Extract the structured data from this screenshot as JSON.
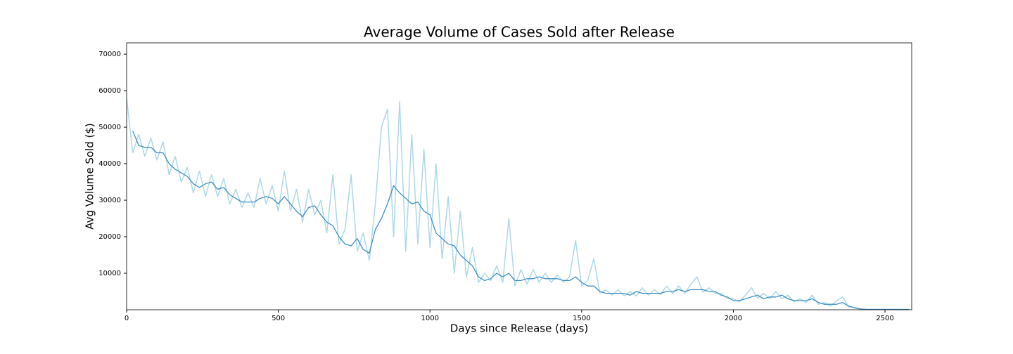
{
  "chart_data": {
    "type": "line",
    "title": "Average Volume of Cases Sold after Release",
    "xlabel": "Days since Release (days)",
    "ylabel": "Avg Volume Sold ($)",
    "x": [
      0,
      20,
      40,
      60,
      80,
      100,
      120,
      140,
      160,
      180,
      200,
      220,
      240,
      260,
      280,
      300,
      320,
      340,
      360,
      380,
      400,
      420,
      440,
      460,
      480,
      500,
      520,
      540,
      560,
      580,
      600,
      620,
      640,
      660,
      680,
      700,
      720,
      740,
      760,
      780,
      800,
      820,
      840,
      860,
      880,
      900,
      920,
      940,
      960,
      980,
      1000,
      1020,
      1040,
      1060,
      1080,
      1100,
      1120,
      1140,
      1160,
      1180,
      1200,
      1220,
      1240,
      1260,
      1280,
      1300,
      1320,
      1340,
      1360,
      1380,
      1400,
      1420,
      1440,
      1460,
      1480,
      1500,
      1520,
      1540,
      1560,
      1580,
      1600,
      1620,
      1640,
      1660,
      1680,
      1700,
      1720,
      1740,
      1760,
      1780,
      1800,
      1820,
      1840,
      1860,
      1880,
      1900,
      1920,
      1940,
      1960,
      1980,
      2000,
      2020,
      2040,
      2060,
      2080,
      2100,
      2120,
      2140,
      2160,
      2180,
      2200,
      2220,
      2240,
      2260,
      2280,
      2300,
      2320,
      2340,
      2360,
      2380,
      2400,
      2420,
      2440,
      2460,
      2480,
      2500,
      2520,
      2540,
      2560,
      2580
    ],
    "series": [
      {
        "color": "#add8e6",
        "values": [
          58000,
          43000,
          48000,
          42000,
          47000,
          41000,
          46000,
          37000,
          42000,
          35000,
          39000,
          32000,
          38000,
          31000,
          37000,
          31000,
          36000,
          29000,
          33000,
          28000,
          32000,
          28000,
          36000,
          29000,
          34000,
          27000,
          38000,
          27000,
          33000,
          24000,
          33000,
          26000,
          30000,
          21000,
          37000,
          18000,
          22000,
          37000,
          16000,
          21000,
          13500,
          29000,
          50000,
          55000,
          20000,
          57000,
          16000,
          48000,
          18000,
          44000,
          17000,
          40000,
          14000,
          31000,
          10000,
          27000,
          9000,
          17000,
          7500,
          10000,
          8000,
          12000,
          7500,
          25000,
          6500,
          11000,
          7000,
          11000,
          7500,
          10000,
          7500,
          9500,
          7500,
          9000,
          19000,
          6500,
          8000,
          14000,
          4500,
          5500,
          4000,
          5500,
          3800,
          5000,
          3800,
          6000,
          4000,
          5500,
          4200,
          6500,
          4500,
          6500,
          4500,
          7000,
          9000,
          4800,
          6000,
          4500,
          4500,
          3000,
          3000,
          2200,
          4000,
          6000,
          3200,
          4500,
          3000,
          5000,
          3000,
          4000,
          2200,
          3000,
          2000,
          4000,
          1500,
          2000,
          1000,
          2500,
          3500,
          800,
          700,
          200,
          100,
          100,
          100,
          100,
          100,
          100,
          100,
          100
        ]
      },
      {
        "color": "#3f8fc4",
        "values": [
          null,
          49000,
          45000,
          44500,
          44500,
          43000,
          43000,
          40000,
          38500,
          37500,
          36500,
          34500,
          33500,
          34500,
          35000,
          33000,
          33500,
          31500,
          30500,
          29500,
          29500,
          29500,
          30500,
          31000,
          30500,
          29000,
          31000,
          29000,
          27000,
          25500,
          28000,
          28500,
          26000,
          24000,
          23000,
          20000,
          18000,
          17500,
          19500,
          16500,
          15500,
          22000,
          25000,
          29000,
          34000,
          32000,
          30500,
          29000,
          29500,
          27000,
          26000,
          21000,
          19500,
          18000,
          17500,
          15000,
          13500,
          12000,
          9000,
          8000,
          8500,
          10000,
          9000,
          10000,
          8000,
          8000,
          8500,
          8500,
          9000,
          8500,
          8500,
          8500,
          8000,
          8000,
          9000,
          7500,
          6500,
          6500,
          5000,
          4500,
          4500,
          4500,
          4500,
          4000,
          5000,
          4500,
          4500,
          4500,
          4500,
          5000,
          5000,
          5500,
          5000,
          5500,
          5500,
          5500,
          5000,
          5000,
          4000,
          3500,
          2500,
          2500,
          3000,
          3500,
          4000,
          3000,
          3500,
          3500,
          4000,
          3000,
          2500,
          2500,
          2500,
          3000,
          2000,
          1500,
          1500,
          1500,
          2000,
          1000,
          500,
          200,
          100,
          100,
          100,
          100,
          100,
          100,
          100,
          100
        ]
      }
    ],
    "xlim": [
      0,
      2588
    ],
    "ylim": [
      0,
      73100
    ],
    "xticks": [
      0,
      500,
      1000,
      1500,
      2000,
      2500
    ],
    "yticks": [
      10000,
      20000,
      30000,
      40000,
      50000,
      60000,
      70000
    ],
    "grid": false
  }
}
